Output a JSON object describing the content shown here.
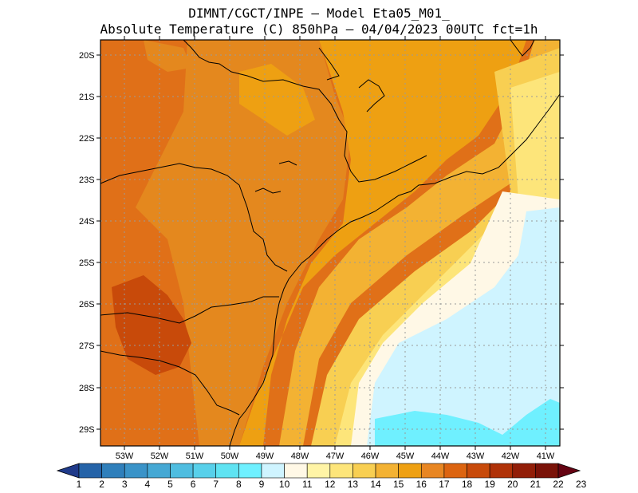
{
  "title": {
    "line1": "DIMNT/CGCT/INPE –  Model Eta05_M01_",
    "line2": "Absolute Temperature (C) 850hPa –  04/04/2023 00UTC fct=1h"
  },
  "map": {
    "lat_labels": [
      "20S",
      "21S",
      "22S",
      "23S",
      "24S",
      "25S",
      "26S",
      "27S",
      "28S",
      "29S"
    ],
    "lon_labels": [
      "53W",
      "52W",
      "51W",
      "50W",
      "49W",
      "48W",
      "47W",
      "46W",
      "45W",
      "44W",
      "43W",
      "42W",
      "41W"
    ]
  },
  "colorbar": {
    "labels": [
      "1",
      "2",
      "3",
      "4",
      "5",
      "6",
      "7",
      "8",
      "9",
      "10",
      "11",
      "12",
      "13",
      "14",
      "15",
      "16",
      "17",
      "18",
      "19",
      "20",
      "21",
      "22",
      "23"
    ],
    "colors": [
      "#1f3a8a",
      "#2563a8",
      "#2f7fbb",
      "#3a93c8",
      "#45a8d4",
      "#4fbde0",
      "#58d0ea",
      "#5fe3f2",
      "#6ff0ff",
      "#cff4ff",
      "#fff8e6",
      "#fff4a6",
      "#fde57a",
      "#f8cf52",
      "#f3b233",
      "#eea012",
      "#e88622",
      "#dc6410",
      "#c84a0a",
      "#b03208",
      "#921e08",
      "#7a1208",
      "#650312"
    ]
  },
  "regions": {
    "west": "#e07018",
    "midwest": "#e4881e",
    "center": "#eea012",
    "center_light": "#f3b233",
    "coast": "#f8cf52",
    "offshore": "#fde57a",
    "ocean_pale": "#fff8e6",
    "ocean_cool": "#cff4ff",
    "ocean_cyan": "#6ff0ff",
    "hot": "#c84a0a"
  }
}
